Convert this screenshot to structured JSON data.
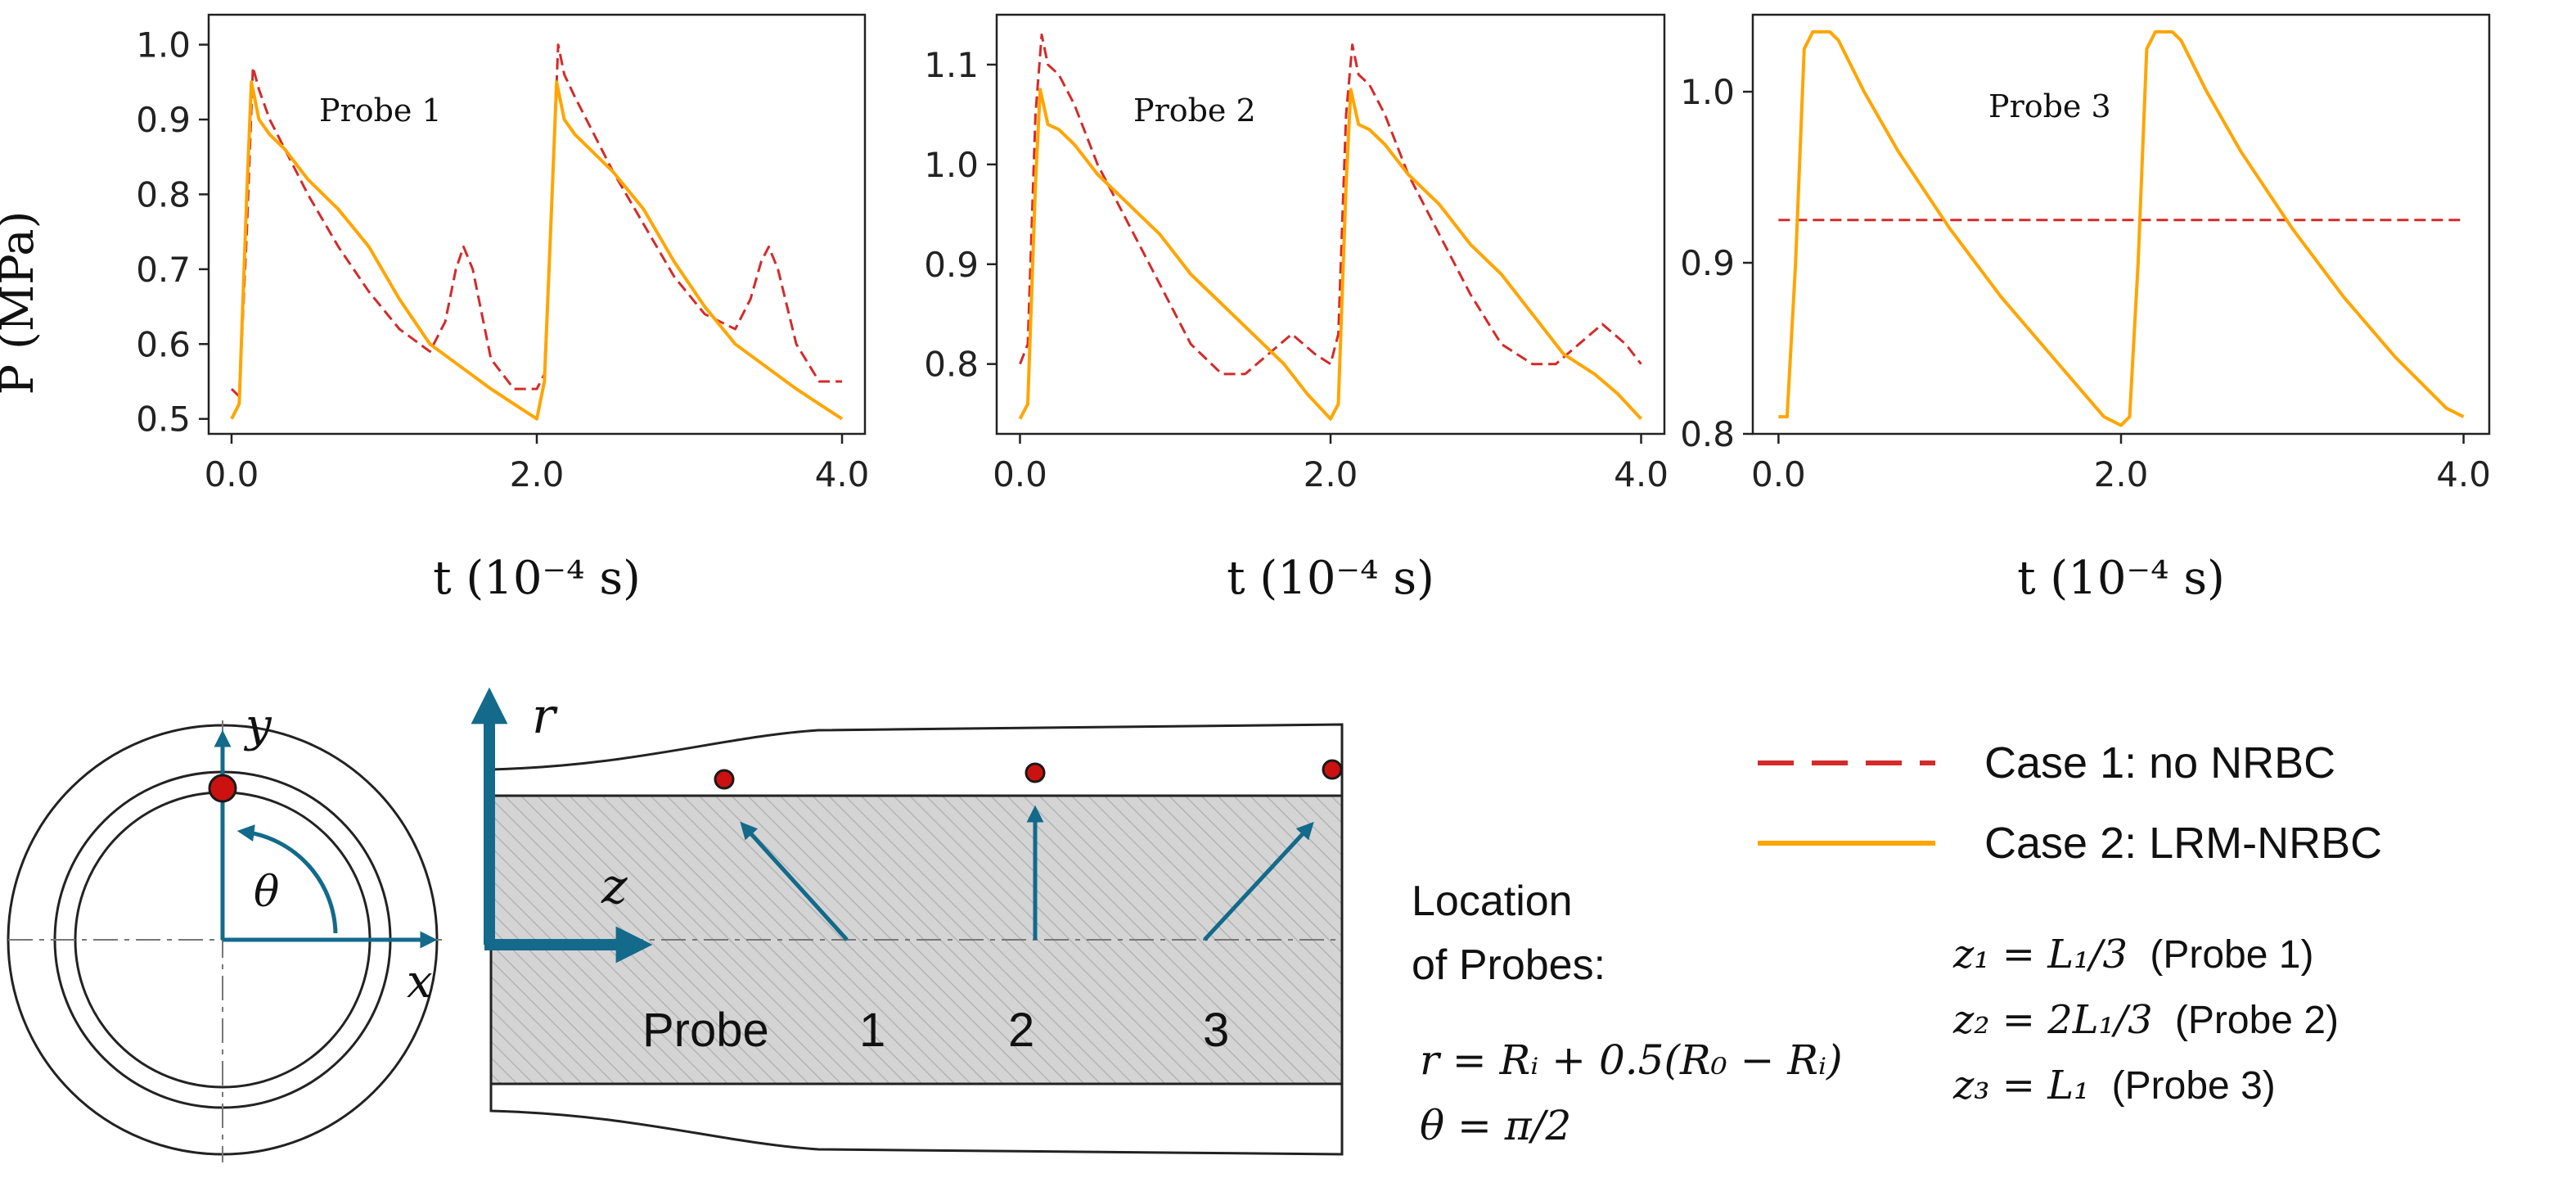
{
  "colors": {
    "case1": "#d42a2a",
    "case2": "#ffa500",
    "arrow": "#136a8a",
    "hatch_fill": "#d6d6d6",
    "probe_fill": "#cc1111"
  },
  "chart_data": [
    {
      "type": "line",
      "title": "Probe 1",
      "xlabel": "t (10⁻⁴ s)",
      "ylabel": "P (MPa)",
      "xlim": [
        -0.15,
        4.15
      ],
      "ylim": [
        0.48,
        1.04
      ],
      "xticks": [
        0.0,
        2.0,
        4.0
      ],
      "xtick_labels": [
        "0.0",
        "2.0",
        "4.0"
      ],
      "yticks": [
        0.5,
        0.6,
        0.7,
        0.8,
        0.9,
        1.0
      ],
      "ytick_labels": [
        "0.5",
        "0.6",
        "0.7",
        "0.8",
        "0.9",
        "1.0"
      ],
      "series": [
        {
          "name": "Case 1: no NRBC",
          "style": "dashed",
          "x": [
            0.0,
            0.05,
            0.1,
            0.14,
            0.18,
            0.25,
            0.35,
            0.5,
            0.7,
            0.9,
            1.1,
            1.3,
            1.4,
            1.47,
            1.52,
            1.58,
            1.7,
            1.85,
            2.0,
            2.05,
            2.1,
            2.14,
            2.18,
            2.25,
            2.35,
            2.5,
            2.7,
            2.9,
            3.1,
            3.3,
            3.4,
            3.47,
            3.52,
            3.58,
            3.7,
            3.85,
            4.0
          ],
          "values": [
            0.54,
            0.53,
            0.75,
            0.97,
            0.94,
            0.9,
            0.86,
            0.8,
            0.73,
            0.67,
            0.62,
            0.59,
            0.63,
            0.7,
            0.73,
            0.7,
            0.58,
            0.54,
            0.54,
            0.56,
            0.8,
            1.0,
            0.96,
            0.93,
            0.89,
            0.83,
            0.76,
            0.69,
            0.64,
            0.62,
            0.66,
            0.71,
            0.73,
            0.7,
            0.6,
            0.55,
            0.55
          ]
        },
        {
          "name": "Case 2: LRM-NRBC",
          "style": "solid",
          "x": [
            0.0,
            0.05,
            0.1,
            0.13,
            0.18,
            0.25,
            0.35,
            0.5,
            0.7,
            0.9,
            1.1,
            1.3,
            1.5,
            1.7,
            1.85,
            2.0,
            2.05,
            2.1,
            2.13,
            2.18,
            2.25,
            2.35,
            2.5,
            2.7,
            2.9,
            3.1,
            3.3,
            3.5,
            3.7,
            3.85,
            4.0
          ],
          "values": [
            0.5,
            0.52,
            0.8,
            0.95,
            0.9,
            0.88,
            0.86,
            0.82,
            0.78,
            0.73,
            0.66,
            0.6,
            0.57,
            0.54,
            0.52,
            0.5,
            0.55,
            0.8,
            0.95,
            0.9,
            0.88,
            0.86,
            0.83,
            0.78,
            0.71,
            0.65,
            0.6,
            0.57,
            0.54,
            0.52,
            0.5
          ]
        }
      ]
    },
    {
      "type": "line",
      "title": "Probe 2",
      "xlabel": "t (10⁻⁴ s)",
      "ylabel": "",
      "xlim": [
        -0.15,
        4.15
      ],
      "ylim": [
        0.73,
        1.15
      ],
      "xticks": [
        0.0,
        2.0,
        4.0
      ],
      "xtick_labels": [
        "0.0",
        "2.0",
        "4.0"
      ],
      "yticks": [
        0.8,
        0.9,
        1.0,
        1.1
      ],
      "ytick_labels": [
        "0.8",
        "0.9",
        "1.0",
        "1.1"
      ],
      "series": [
        {
          "name": "Case 1: no NRBC",
          "style": "dashed",
          "x": [
            0.0,
            0.05,
            0.1,
            0.14,
            0.18,
            0.25,
            0.35,
            0.5,
            0.7,
            0.9,
            1.1,
            1.3,
            1.45,
            1.6,
            1.75,
            1.9,
            2.0,
            2.05,
            2.1,
            2.14,
            2.18,
            2.25,
            2.35,
            2.5,
            2.7,
            2.9,
            3.1,
            3.3,
            3.45,
            3.6,
            3.75,
            3.9,
            4.0
          ],
          "values": [
            0.8,
            0.82,
            1.05,
            1.13,
            1.1,
            1.09,
            1.06,
            1.0,
            0.94,
            0.88,
            0.82,
            0.79,
            0.79,
            0.81,
            0.83,
            0.81,
            0.8,
            0.83,
            1.05,
            1.12,
            1.09,
            1.08,
            1.05,
            0.99,
            0.93,
            0.87,
            0.82,
            0.8,
            0.8,
            0.82,
            0.84,
            0.82,
            0.8
          ]
        },
        {
          "name": "Case 2: LRM-NRBC",
          "style": "solid",
          "x": [
            0.0,
            0.05,
            0.1,
            0.13,
            0.18,
            0.25,
            0.35,
            0.5,
            0.7,
            0.9,
            1.1,
            1.3,
            1.5,
            1.7,
            1.85,
            2.0,
            2.05,
            2.1,
            2.13,
            2.18,
            2.25,
            2.35,
            2.5,
            2.7,
            2.9,
            3.1,
            3.3,
            3.5,
            3.7,
            3.85,
            4.0
          ],
          "values": [
            0.745,
            0.76,
            0.98,
            1.075,
            1.04,
            1.035,
            1.02,
            0.99,
            0.96,
            0.93,
            0.89,
            0.86,
            0.83,
            0.8,
            0.77,
            0.745,
            0.76,
            0.98,
            1.075,
            1.04,
            1.035,
            1.02,
            0.99,
            0.96,
            0.92,
            0.89,
            0.85,
            0.81,
            0.79,
            0.77,
            0.745
          ]
        }
      ]
    },
    {
      "type": "line",
      "title": "Probe 3",
      "xlabel": "t (10⁻⁴ s)",
      "ylabel": "",
      "xlim": [
        -0.15,
        4.15
      ],
      "ylim": [
        0.8,
        1.045
      ],
      "xticks": [
        0.0,
        2.0,
        4.0
      ],
      "xtick_labels": [
        "0.0",
        "2.0",
        "4.0"
      ],
      "yticks": [
        0.8,
        0.9,
        1.0
      ],
      "ytick_labels": [
        "0.8",
        "0.9",
        "1.0"
      ],
      "series": [
        {
          "name": "Case 1: no NRBC",
          "style": "dashed",
          "x": [
            0.0,
            4.0
          ],
          "values": [
            0.925,
            0.925
          ]
        },
        {
          "name": "Case 2: LRM-NRBC",
          "style": "solid",
          "x": [
            0.0,
            0.05,
            0.1,
            0.15,
            0.2,
            0.3,
            0.35,
            0.5,
            0.7,
            1.0,
            1.3,
            1.6,
            1.9,
            2.0,
            2.05,
            2.1,
            2.15,
            2.2,
            2.3,
            2.35,
            2.5,
            2.7,
            3.0,
            3.3,
            3.6,
            3.9,
            4.0
          ],
          "values": [
            0.81,
            0.81,
            0.9,
            1.025,
            1.035,
            1.035,
            1.03,
            1.0,
            0.965,
            0.92,
            0.88,
            0.845,
            0.81,
            0.805,
            0.81,
            0.9,
            1.025,
            1.035,
            1.035,
            1.03,
            1.0,
            0.965,
            0.92,
            0.88,
            0.845,
            0.815,
            0.81
          ]
        }
      ]
    }
  ],
  "legend": {
    "case1": "Case 1: no NRBC",
    "case2": "Case 2: LRM-NRBC"
  },
  "diagram": {
    "cross_section": {
      "y_label": "y",
      "x_label": "x",
      "theta_label": "θ"
    },
    "side_view": {
      "r_label": "r",
      "z_label": "z",
      "probe_word": "Probe",
      "probe_numbers": [
        "1",
        "2",
        "3"
      ]
    },
    "location": {
      "title_line1": "Location",
      "title_line2": "of Probes:",
      "r_eq": "r = Rᵢ + 0.5(R₀ − Rᵢ)",
      "theta_eq": "θ = π/2"
    },
    "z_positions": [
      {
        "eq": "z₁ = L₁/3",
        "note": "(Probe 1)"
      },
      {
        "eq": "z₂ = 2L₁/3",
        "note": "(Probe 2)"
      },
      {
        "eq": "z₃ = L₁",
        "note": "(Probe 3)"
      }
    ]
  }
}
